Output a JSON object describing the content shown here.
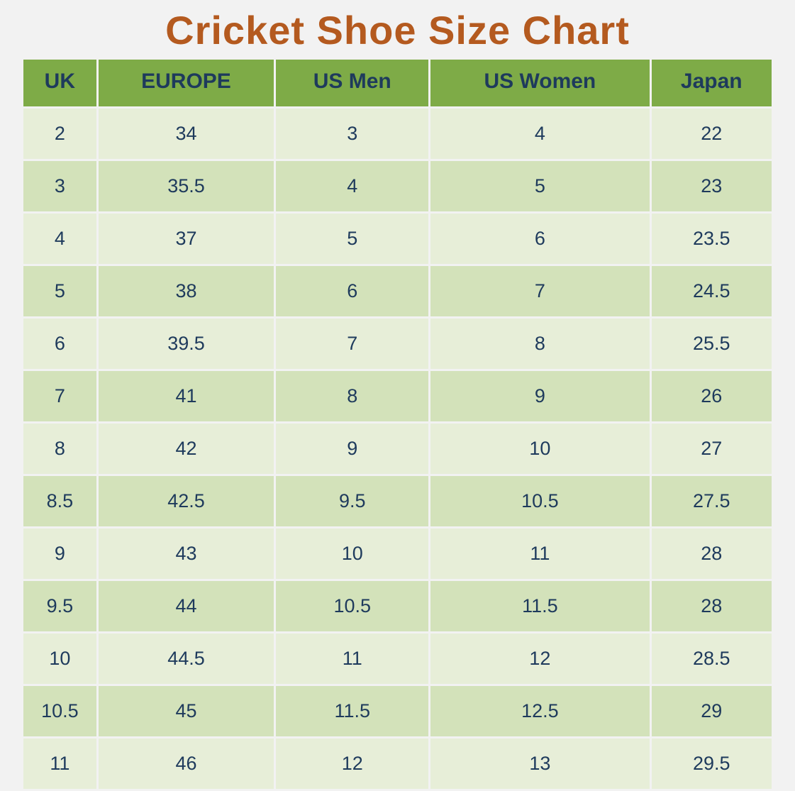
{
  "title": "Cricket Shoe Size Chart",
  "title_color": "#b45a1f",
  "title_fontsize": 56,
  "header_bg": "#7eab47",
  "header_text_color": "#1e3a5c",
  "row_odd_bg": "#e7eed8",
  "row_even_bg": "#d3e2ba",
  "cell_text_color": "#1e3a5c",
  "background_color": "#f2f2f2",
  "table": {
    "columns": [
      "UK",
      "EUROPE",
      "US Men",
      "US Women",
      "Japan"
    ],
    "rows": [
      [
        "2",
        "34",
        "3",
        "4",
        "22"
      ],
      [
        "3",
        "35.5",
        "4",
        "5",
        "23"
      ],
      [
        "4",
        "37",
        "5",
        "6",
        "23.5"
      ],
      [
        "5",
        "38",
        "6",
        "7",
        "24.5"
      ],
      [
        "6",
        "39.5",
        "7",
        "8",
        "25.5"
      ],
      [
        "7",
        "41",
        "8",
        "9",
        "26"
      ],
      [
        "8",
        "42",
        "9",
        "10",
        "27"
      ],
      [
        "8.5",
        "42.5",
        "9.5",
        "10.5",
        "27.5"
      ],
      [
        "9",
        "43",
        "10",
        "11",
        "28"
      ],
      [
        "9.5",
        "44",
        "10.5",
        "11.5",
        "28"
      ],
      [
        "10",
        "44.5",
        "11",
        "12",
        "28.5"
      ],
      [
        "10.5",
        "45",
        "11.5",
        "12.5",
        "29"
      ],
      [
        "11",
        "46",
        "12",
        "13",
        "29.5"
      ]
    ]
  }
}
